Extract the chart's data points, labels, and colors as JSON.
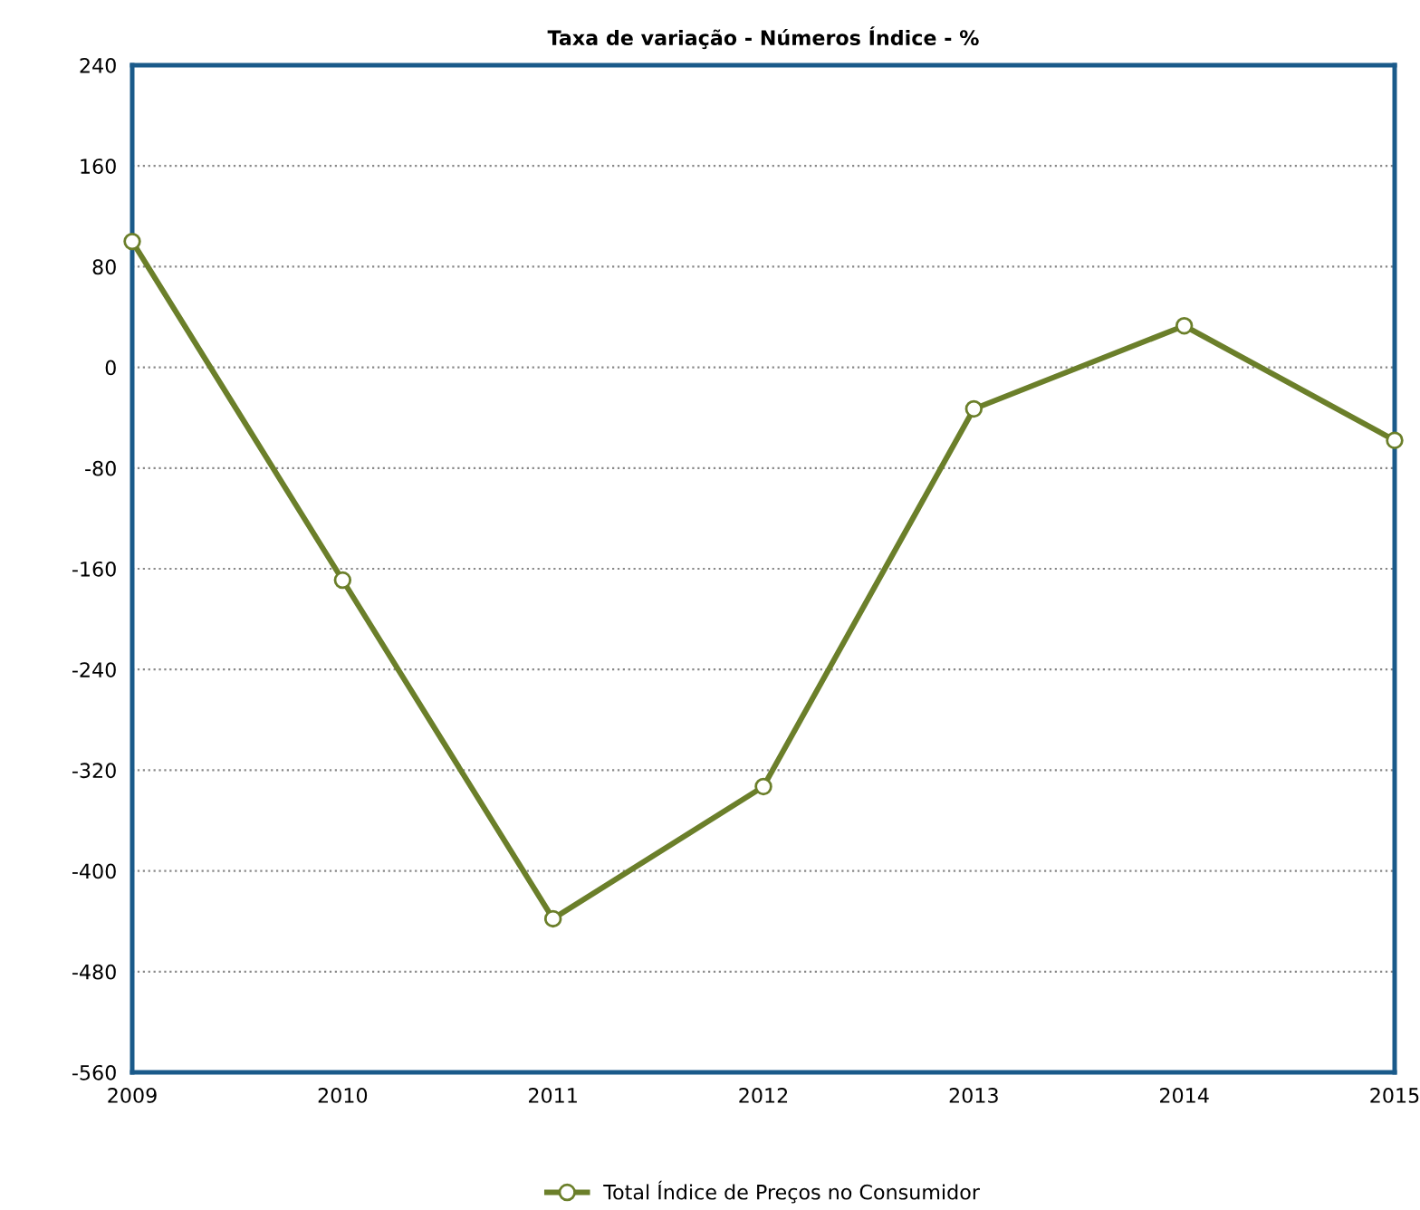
{
  "chart_data": {
    "type": "line",
    "title": "Taxa de variação - Números Índice - %",
    "categories": [
      "2009",
      "2010",
      "2011",
      "2012",
      "2013",
      "2014",
      "2015"
    ],
    "series": [
      {
        "name": "Total Índice de Preços no Consumidor",
        "color": "#6b7f2a",
        "values": [
          100,
          -169,
          -438,
          -333,
          -33,
          33,
          -58
        ]
      }
    ],
    "ylim": [
      -560,
      240
    ],
    "yticks": [
      -560,
      -480,
      -400,
      -320,
      -240,
      -160,
      -80,
      0,
      80,
      160,
      240
    ],
    "grid": "y",
    "legend": "bottom",
    "marker": "circle",
    "line_style": "solid"
  }
}
